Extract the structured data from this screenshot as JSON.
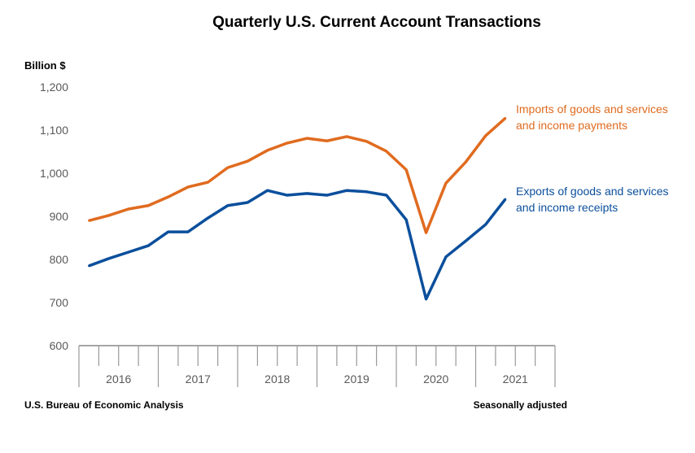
{
  "chart_data": {
    "type": "line",
    "title": "Quarterly U.S. Current Account Transactions",
    "ylabel": "Billion $",
    "xlabel": "",
    "ylim": [
      600,
      1200
    ],
    "yticks": [
      "600",
      "700",
      "800",
      "900",
      "1,000",
      "1,100",
      "1,200"
    ],
    "ytick_values": [
      600,
      700,
      800,
      900,
      1000,
      1100,
      1200
    ],
    "years": [
      "2016",
      "2017",
      "2018",
      "2019",
      "2020",
      "2021"
    ],
    "x": [
      "2016Q1",
      "2016Q2",
      "2016Q3",
      "2016Q4",
      "2017Q1",
      "2017Q2",
      "2017Q3",
      "2017Q4",
      "2018Q1",
      "2018Q2",
      "2018Q3",
      "2018Q4",
      "2019Q1",
      "2019Q2",
      "2019Q3",
      "2019Q4",
      "2020Q1",
      "2020Q2",
      "2020Q3",
      "2020Q4",
      "2021Q1",
      "2021Q2"
    ],
    "grid": false,
    "series": [
      {
        "name": "Imports of goods and services and income payments",
        "label_lines": [
          "Imports of goods and services",
          "and income payments"
        ],
        "color": "#E06B1F",
        "values": [
          890,
          902,
          917,
          925,
          945,
          968,
          979,
          1013,
          1028,
          1053,
          1070,
          1081,
          1075,
          1085,
          1074,
          1051,
          1008,
          862,
          977,
          1026,
          1087,
          1128
        ]
      },
      {
        "name": "Exports of goods and services and income receipts",
        "label_lines": [
          "Exports of goods and services",
          "and income receipts"
        ],
        "color": "#0B4F9C",
        "values": [
          785,
          802,
          817,
          832,
          864,
          864,
          896,
          925,
          932,
          960,
          949,
          953,
          949,
          960,
          957,
          949,
          892,
          708,
          806,
          843,
          881,
          940
        ]
      }
    ],
    "source": "U.S. Bureau of Economic Analysis",
    "note": "Seasonally adjusted"
  }
}
